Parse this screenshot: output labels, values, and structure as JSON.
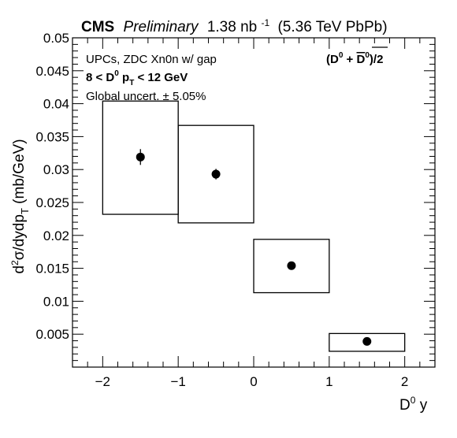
{
  "header": {
    "experiment": "CMS",
    "status": "Preliminary",
    "lumi_value": "1.38 nb",
    "lumi_exp": "-1",
    "energy": "(5.36 TeV PbPb)"
  },
  "annotations": {
    "line1": "UPCs, ZDC Xn0n w/ gap",
    "line2_a": "8 < D",
    "line2_sup": "0",
    "line2_b": " p",
    "line2_sub": "T",
    "line2_c": " < 12 GeV",
    "line3": "Global uncert. ± 5.05%",
    "particle_a": "(D",
    "particle_sup": "0",
    "particle_b": " + ",
    "particle_bar": "D",
    "particle_bar_sup": "0",
    "particle_c": ")/2"
  },
  "chart_data": {
    "type": "scatter",
    "title": "",
    "xlabel": "D⁰ y",
    "ylabel": "d²σ/dydp_T (mb/GeV)",
    "xlim": [
      -2.4,
      2.4
    ],
    "ylim": [
      0.0,
      0.05
    ],
    "x_ticks": [
      -2,
      -1,
      0,
      1,
      2
    ],
    "x_tick_labels": [
      "−2",
      "−1",
      "0",
      "1",
      "2"
    ],
    "y_ticks": [
      0.005,
      0.01,
      0.015,
      0.02,
      0.025,
      0.03,
      0.035,
      0.04,
      0.045,
      0.05
    ],
    "y_tick_labels": [
      "0.005",
      "0.01",
      "0.015",
      "0.02",
      "0.025",
      "0.03",
      "0.035",
      "0.04",
      "0.045",
      "0.05"
    ],
    "grid": false,
    "points": [
      {
        "x": -1.5,
        "y": 0.0319,
        "stat_err": 0.0012,
        "sys_low": 0.0232,
        "sys_high": 0.0404,
        "x_low": -2.0,
        "x_high": -1.0
      },
      {
        "x": -0.5,
        "y": 0.0293,
        "stat_err": 0.0008,
        "sys_low": 0.0219,
        "sys_high": 0.0367,
        "x_low": -1.0,
        "x_high": 0.0
      },
      {
        "x": 0.5,
        "y": 0.0154,
        "stat_err": 0.0003,
        "sys_low": 0.0113,
        "sys_high": 0.0194,
        "x_low": 0.0,
        "x_high": 1.0
      },
      {
        "x": 1.5,
        "y": 0.0039,
        "stat_err": 0.0002,
        "sys_low": 0.0024,
        "sys_high": 0.0051,
        "x_low": 1.0,
        "x_high": 2.0
      }
    ]
  }
}
